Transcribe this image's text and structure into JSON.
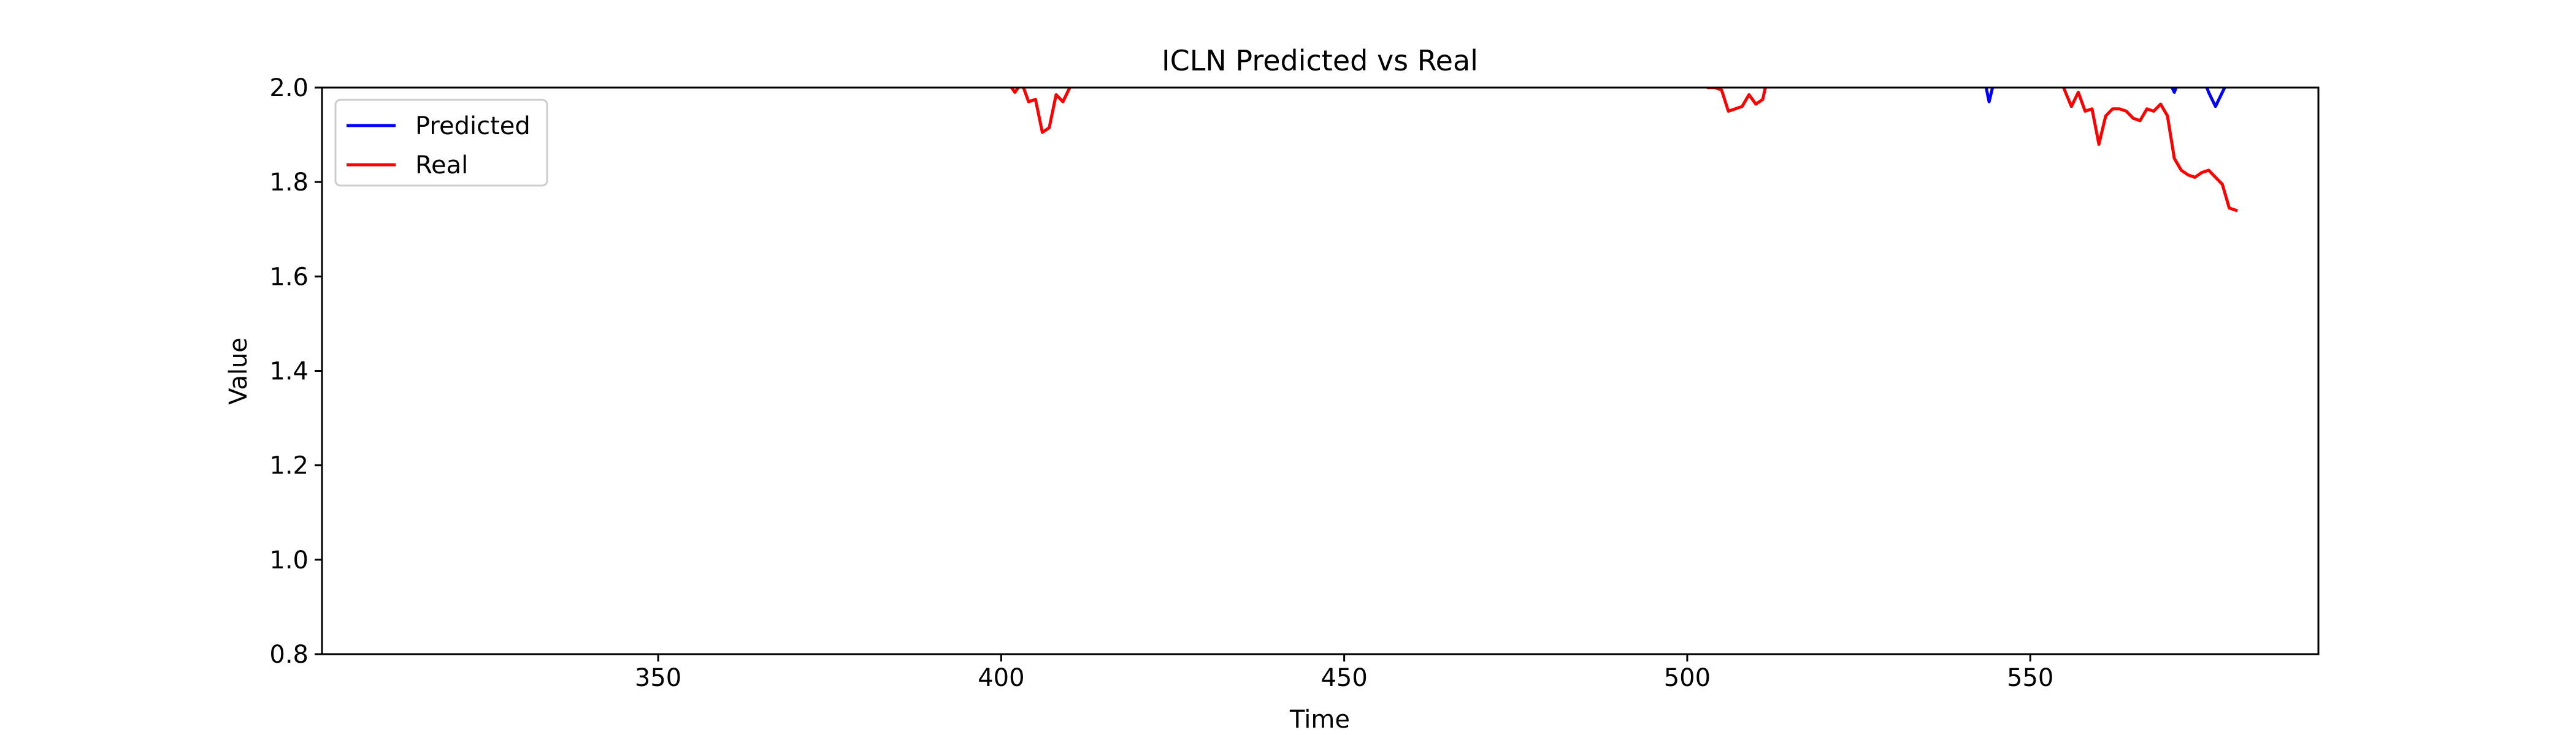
{
  "chart_data": {
    "type": "line",
    "title": "ICLN Predicted vs Real",
    "xlabel": "Time",
    "ylabel": "Value",
    "xlim": [
      301,
      592
    ],
    "ylim": [
      0.8,
      2.0
    ],
    "x_ticks": [
      350,
      400,
      450,
      500,
      550
    ],
    "y_ticks": [
      0.8,
      1.0,
      1.2,
      1.4,
      1.6,
      1.8,
      2.0
    ],
    "x_tick_labels": [
      "350",
      "400",
      "450",
      "500",
      "550"
    ],
    "y_tick_labels": [
      "0.8",
      "1.0",
      "1.2",
      "1.4",
      "1.6",
      "1.8",
      "2.0"
    ],
    "grid": false,
    "legend_position": "top-left",
    "series": [
      {
        "name": "Predicted",
        "color": "#0000ff",
        "points": [
          [
            543,
            2.04
          ],
          [
            544,
            1.97
          ],
          [
            545,
            2.03
          ],
          [
            570,
            2.02
          ],
          [
            571,
            1.99
          ],
          [
            572,
            2.03
          ],
          [
            575,
            2.03
          ],
          [
            576,
            1.99
          ],
          [
            577,
            1.96
          ],
          [
            578,
            1.99
          ],
          [
            579,
            2.02
          ]
        ]
      },
      {
        "name": "Real",
        "color": "#ff0000",
        "points": [
          [
            400,
            2.04
          ],
          [
            401,
            2.01
          ],
          [
            402,
            1.99
          ],
          [
            403,
            2.01
          ],
          [
            404,
            1.97
          ],
          [
            405,
            1.975
          ],
          [
            406,
            1.905
          ],
          [
            407,
            1.915
          ],
          [
            408,
            1.985
          ],
          [
            409,
            1.97
          ],
          [
            410,
            2.0
          ],
          [
            411,
            2.03
          ],
          [
            502,
            2.03
          ],
          [
            503,
            2.0
          ],
          [
            504,
            2.0
          ],
          [
            505,
            1.995
          ],
          [
            506,
            1.95
          ],
          [
            507,
            1.955
          ],
          [
            508,
            1.96
          ],
          [
            509,
            1.985
          ],
          [
            510,
            1.965
          ],
          [
            511,
            1.975
          ],
          [
            512,
            2.04
          ],
          [
            554,
            2.04
          ],
          [
            555,
            1.995
          ],
          [
            556,
            1.96
          ],
          [
            557,
            1.99
          ],
          [
            558,
            1.95
          ],
          [
            559,
            1.955
          ],
          [
            560,
            1.88
          ],
          [
            561,
            1.94
          ],
          [
            562,
            1.955
          ],
          [
            563,
            1.955
          ],
          [
            564,
            1.95
          ],
          [
            565,
            1.935
          ],
          [
            566,
            1.93
          ],
          [
            567,
            1.955
          ],
          [
            568,
            1.95
          ],
          [
            569,
            1.965
          ],
          [
            570,
            1.94
          ],
          [
            571,
            1.85
          ],
          [
            572,
            1.825
          ],
          [
            573,
            1.815
          ],
          [
            574,
            1.81
          ],
          [
            575,
            1.82
          ],
          [
            576,
            1.825
          ],
          [
            577,
            1.81
          ],
          [
            578,
            1.795
          ],
          [
            579,
            1.745
          ],
          [
            580,
            1.74
          ]
        ]
      }
    ]
  }
}
